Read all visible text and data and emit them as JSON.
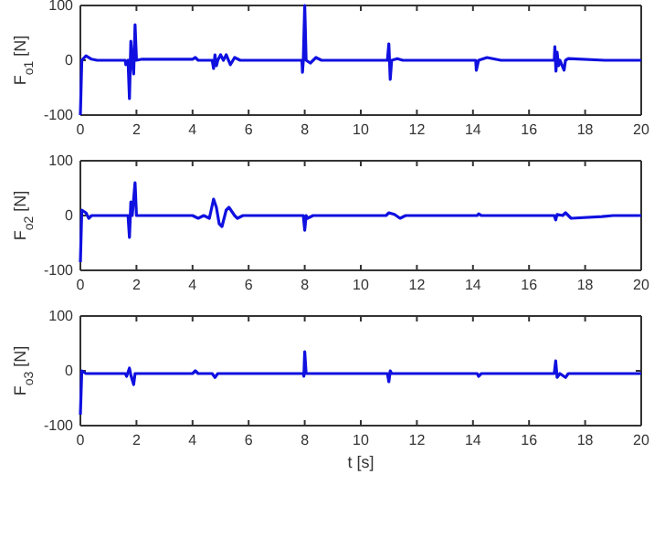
{
  "chart_data": [
    {
      "type": "line",
      "ylabel": "F$_{o1}$ [N]",
      "xlim": [
        0,
        20
      ],
      "xticks": [
        0,
        2,
        4,
        6,
        8,
        10,
        12,
        14,
        16,
        18,
        20
      ],
      "ylim": [
        -100,
        100
      ],
      "yticks": [
        -100,
        0,
        100
      ],
      "grid": false,
      "series": [
        {
          "color": "#1010e0",
          "x": [
            0,
            0.05,
            0.2,
            0.4,
            0.6,
            1.6,
            1.62,
            1.7,
            1.75,
            1.8,
            1.85,
            1.9,
            1.95,
            2.0,
            2.2,
            4.0,
            4.1,
            4.2,
            4.7,
            4.75,
            4.8,
            4.85,
            4.9,
            5.0,
            5.1,
            5.2,
            5.35,
            5.5,
            5.7,
            7.9,
            7.92,
            7.95,
            8.0,
            8.05,
            8.2,
            8.4,
            8.6,
            10.95,
            11.0,
            11.05,
            11.1,
            11.3,
            11.5,
            14.1,
            14.12,
            14.2,
            14.5,
            15,
            16.9,
            16.92,
            16.96,
            17.0,
            17.05,
            17.1,
            17.25,
            17.3,
            17.4,
            18.7,
            20
          ],
          "values": [
            -100,
            0,
            8,
            2,
            0,
            0,
            -8,
            0,
            -70,
            35,
            0,
            -25,
            65,
            0,
            2,
            2,
            5,
            0,
            0,
            -15,
            10,
            -10,
            0,
            10,
            0,
            10,
            -8,
            5,
            0,
            0,
            -22,
            0,
            100,
            0,
            -5,
            5,
            0,
            0,
            30,
            -35,
            0,
            3,
            0,
            0,
            -18,
            0,
            5,
            0,
            0,
            25,
            -20,
            15,
            -10,
            0,
            -18,
            0,
            3,
            0,
            0
          ]
        }
      ]
    },
    {
      "type": "line",
      "ylabel": "F$_{o2}$ [N]",
      "xlim": [
        0,
        20
      ],
      "xticks": [
        0,
        2,
        4,
        6,
        8,
        10,
        12,
        14,
        16,
        18,
        20
      ],
      "ylim": [
        -100,
        100
      ],
      "yticks": [
        -100,
        0,
        100
      ],
      "grid": false,
      "series": [
        {
          "color": "#1010e0",
          "x": [
            0,
            0.05,
            0.2,
            0.3,
            0.4,
            1.7,
            1.75,
            1.8,
            1.85,
            1.95,
            2.0,
            4.0,
            4.2,
            4.4,
            4.6,
            4.75,
            4.85,
            4.95,
            5.05,
            5.2,
            5.3,
            5.5,
            5.6,
            5.8,
            7.95,
            8.0,
            8.05,
            8.1,
            8.3,
            10.9,
            11.0,
            11.2,
            11.4,
            11.6,
            14.15,
            14.2,
            14.3,
            16.9,
            16.95,
            17.0,
            17.2,
            17.3,
            17.5,
            18.6,
            19,
            20
          ],
          "values": [
            -85,
            10,
            5,
            -5,
            0,
            0,
            -40,
            25,
            0,
            60,
            0,
            0,
            -5,
            0,
            -5,
            30,
            15,
            -15,
            -20,
            10,
            15,
            0,
            -5,
            0,
            0,
            -27,
            0,
            -5,
            0,
            0,
            5,
            2,
            -5,
            0,
            0,
            3,
            0,
            0,
            -8,
            2,
            0,
            5,
            -5,
            -2,
            0,
            0
          ]
        }
      ]
    },
    {
      "type": "line",
      "ylabel": "F$_{o3}$ [N]",
      "xlabel": "t [s]",
      "xlim": [
        0,
        20
      ],
      "xticks": [
        0,
        2,
        4,
        6,
        8,
        10,
        12,
        14,
        16,
        18,
        20
      ],
      "ylim": [
        -100,
        100
      ],
      "yticks": [
        -100,
        0,
        100
      ],
      "grid": false,
      "series": [
        {
          "color": "#1010e0",
          "x": [
            0,
            0.05,
            0.2,
            1.6,
            1.65,
            1.75,
            1.8,
            1.9,
            1.95,
            4.0,
            4.1,
            4.2,
            4.7,
            4.8,
            4.9,
            7.95,
            7.97,
            8.0,
            8.05,
            10.95,
            11.0,
            11.05,
            11.1,
            14.15,
            14.2,
            14.3,
            16.9,
            16.95,
            17.0,
            17.1,
            17.3,
            17.4,
            20
          ],
          "values": [
            -80,
            0,
            -5,
            -5,
            -10,
            5,
            -8,
            -25,
            -5,
            -5,
            0,
            -5,
            -5,
            -12,
            -5,
            -5,
            -10,
            35,
            -5,
            -5,
            -20,
            0,
            -5,
            -5,
            -10,
            -5,
            -5,
            18,
            -12,
            -5,
            -12,
            -5,
            -5
          ]
        }
      ]
    }
  ]
}
